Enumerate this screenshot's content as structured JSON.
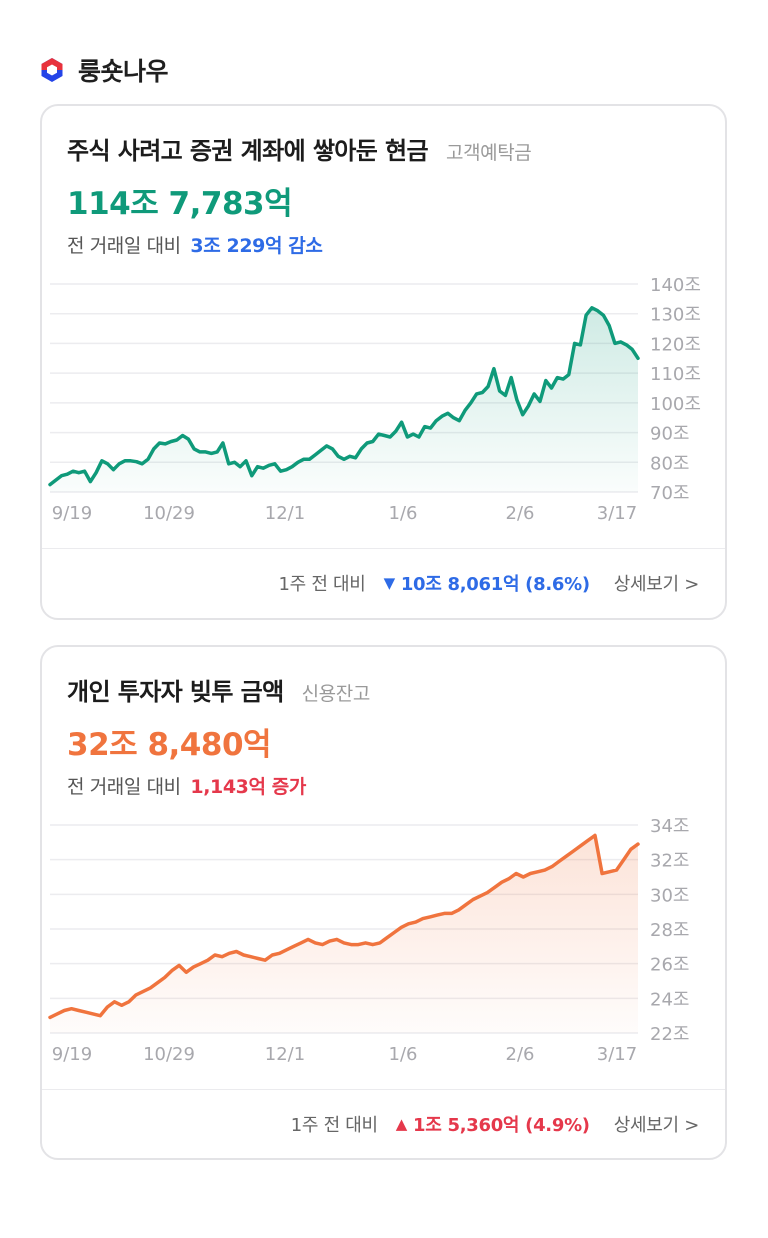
{
  "brand": {
    "name": "룽숏나우",
    "icon": "hexagon-logo-icon",
    "colors": {
      "red": "#e8323c",
      "blue": "#2444e8"
    }
  },
  "cards": [
    {
      "id": "deposits",
      "title": "주식 사려고 증권 계좌에 쌓아둔 현금",
      "subtitle": "고객예탁금",
      "value": "114조 7,783억",
      "change_label": "전 거래일 대비",
      "change_value": "3조 229억 감소",
      "weekly_label": "1주 전 대비",
      "weekly_arrow": "▼",
      "weekly_value": "10조 8,061억 (8.6%)",
      "detail_label": "상세보기 >",
      "color": "#0f9a7a",
      "chart_data": {
        "type": "area",
        "title": "고객예탁금",
        "unit": "조",
        "x_ticks": [
          "9/19",
          "10/29",
          "12/1",
          "1/6",
          "2/6",
          "3/17"
        ],
        "y_ticks": [
          "70조",
          "80조",
          "90조",
          "100조",
          "110조",
          "120조",
          "130조",
          "140조"
        ],
        "ylim": [
          70,
          140
        ],
        "values": [
          72.5,
          74,
          75.5,
          76,
          77,
          76.5,
          77,
          73.5,
          76.5,
          80.5,
          79.5,
          77.5,
          79.5,
          80.5,
          80.5,
          80.2,
          79.5,
          81,
          84.5,
          86.5,
          86.2,
          87,
          87.5,
          89,
          87.8,
          84.5,
          83.5,
          83.5,
          83,
          83.5,
          86.5,
          79.5,
          80,
          78.5,
          80.5,
          75.5,
          78.5,
          78,
          79,
          79.5,
          77,
          77.5,
          78.5,
          80,
          81,
          81,
          82.5,
          84,
          85.5,
          84.5,
          82,
          81,
          82,
          81.5,
          84.5,
          86.5,
          87,
          89.5,
          89,
          88.5,
          90.5,
          93.5,
          88.5,
          89.5,
          88.5,
          92,
          91.5,
          94,
          95.5,
          96.5,
          95,
          94,
          97.5,
          100,
          103,
          103.5,
          105.5,
          111.5,
          104,
          102.5,
          108.5,
          101,
          96,
          99,
          103,
          100.5,
          107.5,
          105,
          108.5,
          108,
          109.5,
          120,
          119.5,
          129.5,
          132,
          131,
          129.5,
          126,
          120,
          120.5,
          119.5,
          118,
          115
        ]
      }
    },
    {
      "id": "credit",
      "title": "개인 투자자 빚투 금액",
      "subtitle": "신용잔고",
      "value": "32조 8,480억",
      "change_label": "전 거래일 대비",
      "change_value": "1,143억 증가",
      "weekly_label": "1주 전 대비",
      "weekly_arrow": "▲",
      "weekly_value": "1조 5,360억 (4.9%)",
      "detail_label": "상세보기 >",
      "color": "#f0743e",
      "chart_data": {
        "type": "area",
        "title": "신용잔고",
        "unit": "조",
        "x_ticks": [
          "9/19",
          "10/29",
          "12/1",
          "1/6",
          "2/6",
          "3/17"
        ],
        "y_ticks": [
          "22조",
          "24조",
          "26조",
          "28조",
          "30조",
          "32조",
          "34조"
        ],
        "ylim": [
          22,
          34
        ],
        "values": [
          22.9,
          23.1,
          23.3,
          23.4,
          23.3,
          23.2,
          23.1,
          23.0,
          23.5,
          23.8,
          23.6,
          23.8,
          24.2,
          24.4,
          24.6,
          24.9,
          25.2,
          25.6,
          25.9,
          25.5,
          25.8,
          26.0,
          26.2,
          26.5,
          26.4,
          26.6,
          26.7,
          26.5,
          26.4,
          26.3,
          26.2,
          26.5,
          26.6,
          26.8,
          27.0,
          27.2,
          27.4,
          27.2,
          27.1,
          27.3,
          27.4,
          27.2,
          27.1,
          27.1,
          27.2,
          27.1,
          27.2,
          27.5,
          27.8,
          28.1,
          28.3,
          28.4,
          28.6,
          28.7,
          28.8,
          28.9,
          28.9,
          29.1,
          29.4,
          29.7,
          29.9,
          30.1,
          30.4,
          30.7,
          30.9,
          31.2,
          31.0,
          31.2,
          31.3,
          31.4,
          31.6,
          31.9,
          32.2,
          32.5,
          32.8,
          33.1,
          33.4,
          31.2,
          31.3,
          31.4,
          32.0,
          32.6,
          32.9
        ]
      }
    }
  ]
}
